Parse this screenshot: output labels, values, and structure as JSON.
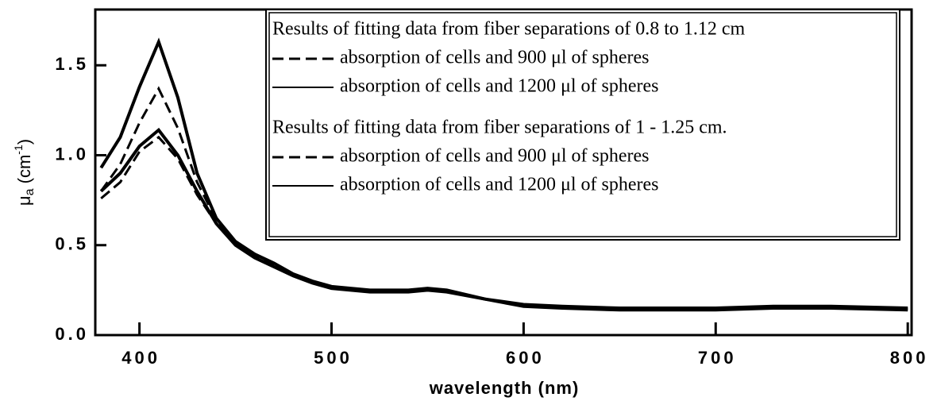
{
  "chart_data": {
    "type": "line",
    "xlabel": "wavelength  (nm)",
    "ylabel_parts": [
      "μ",
      "a",
      " (cm",
      "-1",
      ")"
    ],
    "xlim": [
      377,
      802
    ],
    "ylim": [
      0,
      1.81
    ],
    "xticks": [
      400,
      500,
      600,
      700,
      800
    ],
    "yticks": [
      {
        "value": 0,
        "label": "0.0"
      },
      {
        "value": 0.5,
        "label": "0.5"
      },
      {
        "value": 1,
        "label": "1.0"
      },
      {
        "value": 1.5,
        "label": "1.5"
      }
    ],
    "legend_groups": [
      "Results of fitting data from fiber separations of 0.8 to 1.12 cm",
      "Results of fitting data from fiber separations of 1 - 1.25 cm."
    ],
    "x": [
      380,
      390,
      400,
      410,
      420,
      430,
      440,
      450,
      460,
      470,
      480,
      490,
      500,
      520,
      540,
      550,
      560,
      580,
      600,
      620,
      650,
      700,
      730,
      760,
      800
    ],
    "series": [
      {
        "name": "absorption of cells and 900 μl of spheres",
        "group": 0,
        "dash": true,
        "color": "#000",
        "values": [
          0.8,
          0.95,
          1.18,
          1.37,
          1.15,
          0.85,
          0.64,
          0.52,
          0.45,
          0.4,
          0.34,
          0.3,
          0.27,
          0.25,
          0.25,
          0.26,
          0.25,
          0.2,
          0.17,
          0.16,
          0.15,
          0.15,
          0.16,
          0.16,
          0.15
        ]
      },
      {
        "name": "absorption of cells and 1200  μl of spheres",
        "group": 0,
        "dash": false,
        "color": "#000",
        "values": [
          0.93,
          1.1,
          1.38,
          1.63,
          1.32,
          0.9,
          0.65,
          0.52,
          0.45,
          0.4,
          0.34,
          0.3,
          0.27,
          0.25,
          0.25,
          0.26,
          0.25,
          0.2,
          0.17,
          0.16,
          0.15,
          0.15,
          0.16,
          0.16,
          0.15
        ]
      },
      {
        "name": "absorption of cells and 900 μl of spheres",
        "group": 1,
        "dash": true,
        "color": "#000",
        "values": [
          0.76,
          0.85,
          1.02,
          1.1,
          0.98,
          0.78,
          0.62,
          0.51,
          0.44,
          0.39,
          0.33,
          0.29,
          0.26,
          0.24,
          0.24,
          0.25,
          0.24,
          0.2,
          0.16,
          0.15,
          0.14,
          0.14,
          0.15,
          0.15,
          0.14
        ]
      },
      {
        "name": "absorption of cells and 1200  μl of spheres",
        "group": 1,
        "dash": false,
        "color": "#000",
        "values": [
          0.8,
          0.9,
          1.05,
          1.14,
          1.0,
          0.8,
          0.62,
          0.5,
          0.43,
          0.38,
          0.33,
          0.29,
          0.26,
          0.24,
          0.24,
          0.25,
          0.24,
          0.2,
          0.16,
          0.15,
          0.14,
          0.14,
          0.15,
          0.15,
          0.14
        ]
      }
    ]
  }
}
